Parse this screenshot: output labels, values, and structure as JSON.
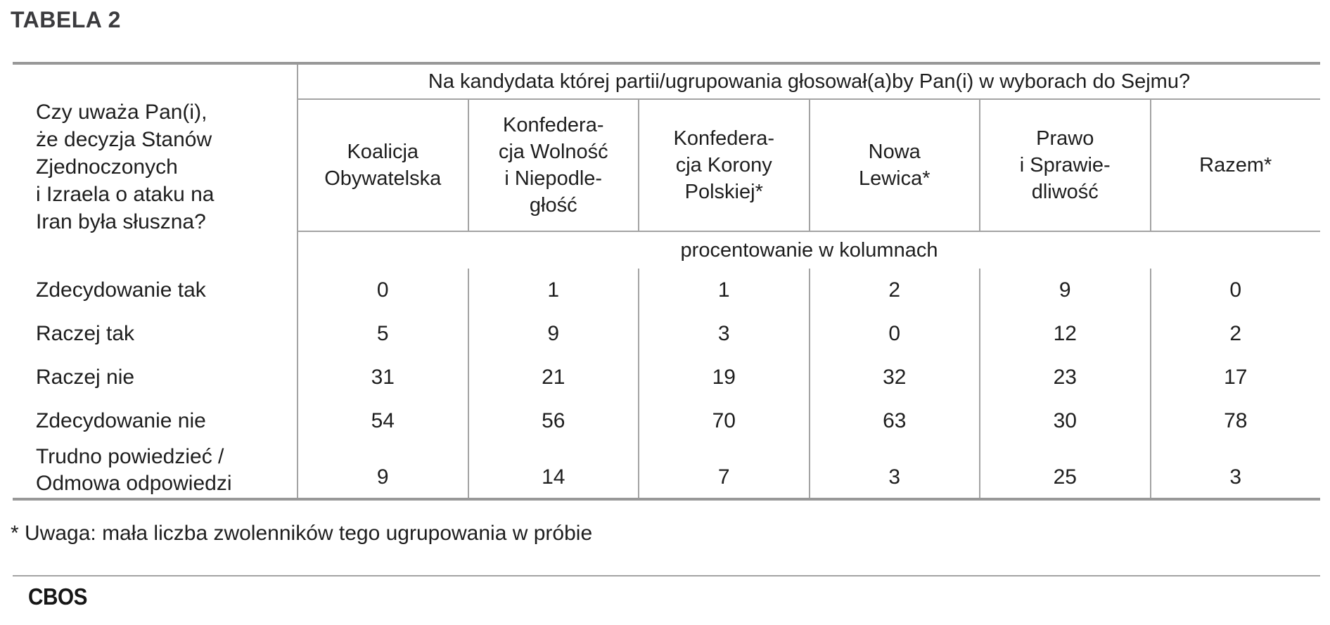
{
  "title": "TABELA 2",
  "chart_data": {
    "type": "table",
    "title": "TABELA 2",
    "column_question": "Na kandydata której partii/ugrupowania głosował(a)by Pan(i) w wyborach do Sejmu?",
    "row_question": "Czy uważa Pan(i), że decyzja Stanów Zjednoczonych i Izraela o ataku na Iran była słuszna?",
    "unit_note": "procentowanie w kolumnach",
    "columns": [
      "Koalicja Obywatelska",
      "Konfederacja Wolność i Niepodległość",
      "Konfederacja Korony Polskiej*",
      "Nowa Lewica*",
      "Prawo i Sprawiedliwość",
      "Razem*"
    ],
    "rows": [
      "Zdecydowanie tak",
      "Raczej tak",
      "Raczej nie",
      "Zdecydowanie nie",
      "Trudno powiedzieć / Odmowa odpowiedzi"
    ],
    "values": [
      [
        0,
        1,
        1,
        2,
        9,
        0
      ],
      [
        5,
        9,
        3,
        0,
        12,
        2
      ],
      [
        31,
        21,
        19,
        32,
        23,
        17
      ],
      [
        54,
        56,
        70,
        63,
        30,
        78
      ],
      [
        9,
        14,
        7,
        3,
        25,
        3
      ]
    ],
    "footnote": "* Uwaga: mała liczba zwolenników tego ugrupowania w próbie",
    "source_label": "CBOS"
  },
  "display": {
    "question_lines": [
      "Czy uważa Pan(i),",
      "że decyzja Stanów",
      "Zjednoczonych",
      "i Izraela o ataku na",
      "Iran była słuszna?"
    ],
    "column_header_lines": [
      [
        "Koalicja",
        "Obywatelska"
      ],
      [
        "Konfedera-",
        "cja Wolność",
        "i Niepodle-",
        "głość"
      ],
      [
        "Konfedera-",
        "cja Korony",
        "Polskiej*"
      ],
      [
        "Nowa",
        "Lewica*"
      ],
      [
        "Prawo",
        "i Sprawie-",
        "dliwość"
      ],
      [
        "Razem*"
      ]
    ]
  },
  "colors": {
    "border_thick": "#989898",
    "border_thin": "#a3a3a3",
    "text": "#1e1e1e",
    "title_text": "#3b3b3e"
  }
}
